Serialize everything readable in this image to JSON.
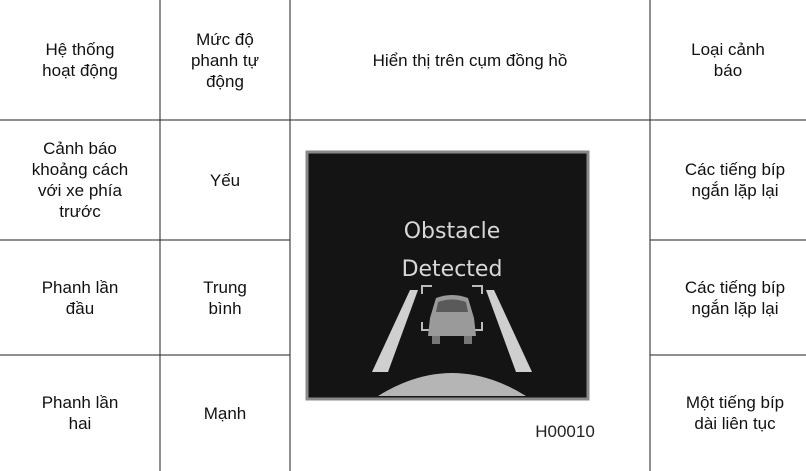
{
  "table": {
    "header": [
      "Hệ thống\nhoạt động",
      "Mức độ\nphanh tự\nđộng",
      "Hiển thị trên cụm đồng hồ",
      "Loại cảnh\nbáo"
    ],
    "rows": [
      [
        "Cảnh báo\nkhoảng cách\nvới xe phía\ntrước",
        "Yếu",
        "Các tiếng bíp\nngắn lặp lại"
      ],
      [
        "Phanh lần\nđầu",
        "Trung\nbình",
        "Các tiếng bíp\nngắn lặp lại"
      ],
      [
        "Phanh lần\nhai",
        "Mạnh",
        "Một tiếng bíp\ndài liên tục"
      ]
    ]
  },
  "display": {
    "lines": [
      "Obstacle",
      "Detected"
    ],
    "caption": "H00010"
  }
}
